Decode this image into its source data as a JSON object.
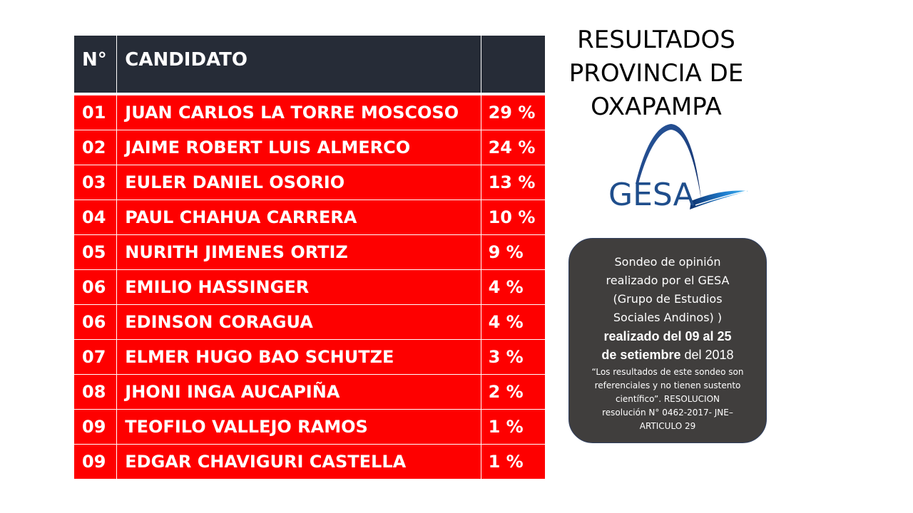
{
  "table": {
    "header": {
      "num": "N°",
      "candidate": "CANDIDATO",
      "percent": ""
    },
    "rows": [
      {
        "num": "01",
        "name": "JUAN CARLOS LA TORRE MOSCOSO",
        "percent": "29 %"
      },
      {
        "num": "02",
        "name": "JAIME ROBERT LUIS ALMERCO",
        "percent": "24 %"
      },
      {
        "num": "03",
        "name": "EULER DANIEL OSORIO",
        "percent": "13 %"
      },
      {
        "num": "04",
        "name": "PAUL CHAHUA CARRERA",
        "percent": "10 %"
      },
      {
        "num": "05",
        "name": "NURITH JIMENES ORTIZ",
        "percent": "9 %"
      },
      {
        "num": "06",
        "name": "EMILIO HASSINGER",
        "percent": "4 %"
      },
      {
        "num": "06",
        "name": "EDINSON CORAGUA",
        "percent": "4 %"
      },
      {
        "num": "07",
        "name": "ELMER HUGO BAO SCHUTZE",
        "percent": "3 %"
      },
      {
        "num": "08",
        "name": "JHONI INGA AUCAPIÑA",
        "percent": "2 %"
      },
      {
        "num": "09",
        "name": "TEOFILO VALLEJO RAMOS",
        "percent": "1 %"
      },
      {
        "num": "09",
        "name": "EDGAR CHAVIGURI CASTELLA",
        "percent": "1 %"
      }
    ]
  },
  "title": {
    "lines": [
      "RESULTADOS",
      "PROVINCIA DE",
      "OXAPAMPA"
    ]
  },
  "logo": {
    "text": "GESA",
    "icon": "gesa-arc-logo",
    "color": "#1f4e8c"
  },
  "note": {
    "line1": "Sondeo de opinión",
    "line2": "realizado por el GESA",
    "line3": "(Grupo de Estudios",
    "line4": "Sociales Andinos) )",
    "line5": "realizado del 09 al 25",
    "line6_bold": "de setiembre",
    "line6_rest": " del 2018",
    "disclaimer1": "“Los resultados de este sondeo son",
    "disclaimer2": "referenciales y no tienen sustento",
    "disclaimer3": "científico”. RESOLUCION",
    "disclaimer4": "resolución N° 0462-2017- JNE–",
    "disclaimer5": "ARTICULO 29"
  },
  "colors": {
    "header_bg": "#262c37",
    "row_bg": "#fe0000",
    "note_bg": "#403e3d"
  }
}
